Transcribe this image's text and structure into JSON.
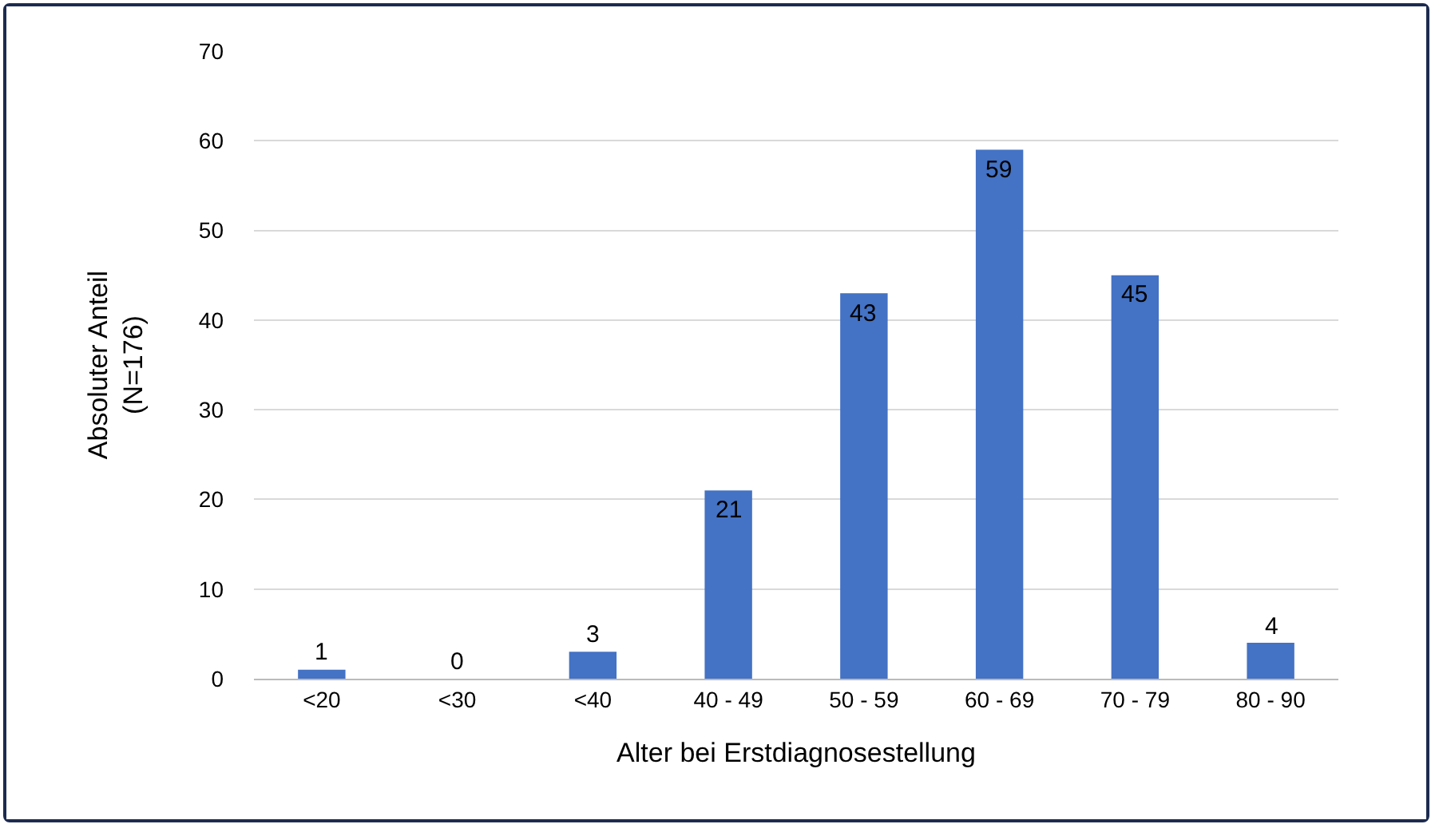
{
  "chart_data": {
    "type": "bar",
    "xlabel": "Alter bei Erstdiagnosestellung",
    "ylabel": "Absoluter Anteil\n(N=176)",
    "categories": [
      "<20",
      "<30",
      "<40",
      "40 - 49",
      "50 - 59",
      "60 - 69",
      "70 - 79",
      "80 - 90"
    ],
    "values": [
      1,
      0,
      3,
      21,
      43,
      59,
      45,
      4
    ],
    "color": "#4472c4",
    "ylim": [
      0,
      70
    ],
    "yticks": [
      0,
      10,
      20,
      30,
      40,
      50,
      60,
      70
    ],
    "grid": "y",
    "data_labels": true
  }
}
